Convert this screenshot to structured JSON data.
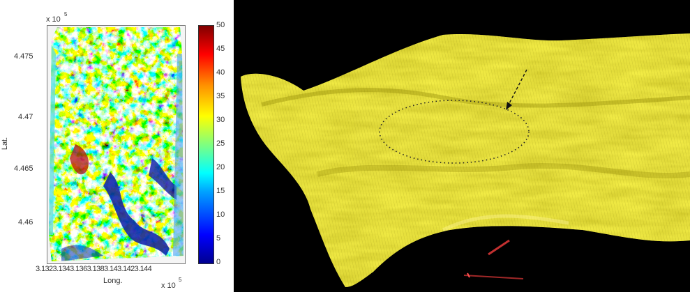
{
  "left_plot": {
    "y_scale": "x 10",
    "y_scale_exp": "5",
    "y_label": "Lat.",
    "y_ticks": [
      "4.475",
      "4.47",
      "4.465",
      "4.46"
    ],
    "x_label": "Long.",
    "x_ticks": [
      "3.132",
      "3.134",
      "3.136",
      "3.138",
      "3.14",
      "3.142",
      "3.144"
    ],
    "x_scale": "x 10",
    "x_scale_exp": "5"
  },
  "colorbar": {
    "ticks": [
      "50",
      "45",
      "40",
      "35",
      "30",
      "25",
      "20",
      "15",
      "10",
      "5",
      "0"
    ],
    "colors": [
      "#00008f",
      "#0000ff",
      "#00a0ff",
      "#00ffff",
      "#7fff7f",
      "#ffff00",
      "#ff9000",
      "#ff0000",
      "#800000"
    ]
  },
  "terrain_view": {
    "background": "#000000",
    "surface_color": "#e6df2c",
    "annotation": "dotted-ellipse-with-arrow"
  }
}
